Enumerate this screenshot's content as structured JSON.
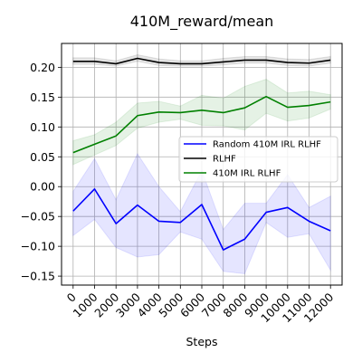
{
  "chart_data": {
    "type": "line",
    "title": "410M_reward/mean",
    "xlabel": "Steps",
    "ylabel": "",
    "x": [
      0,
      1000,
      2000,
      3000,
      4000,
      5000,
      6000,
      7000,
      8000,
      9000,
      10000,
      11000,
      12000
    ],
    "xticks": [
      "0",
      "1000",
      "2000",
      "3000",
      "4000",
      "5000",
      "6000",
      "7000",
      "8000",
      "9000",
      "10000",
      "11000",
      "12000"
    ],
    "yticks": [
      "0.20",
      "0.15",
      "0.10",
      "0.05",
      "0.00",
      "−0.05",
      "−0.10",
      "−0.15"
    ],
    "ytick_values": [
      0.2,
      0.15,
      0.1,
      0.05,
      0.0,
      -0.05,
      -0.1,
      -0.15
    ],
    "ylim": [
      -0.165,
      0.24
    ],
    "grid": true,
    "legend_position": "center-right",
    "series": [
      {
        "name": "Random 410M IRL RLHF",
        "color": "#0000ff",
        "values": [
          -0.041,
          -0.004,
          -0.062,
          -0.031,
          -0.058,
          -0.06,
          -0.03,
          -0.106,
          -0.088,
          -0.043,
          -0.035,
          -0.058,
          -0.074
        ],
        "lower": [
          -0.082,
          -0.055,
          -0.102,
          -0.118,
          -0.114,
          -0.076,
          -0.088,
          -0.142,
          -0.146,
          -0.06,
          -0.085,
          -0.079,
          -0.14
        ],
        "upper": [
          -0.008,
          0.047,
          -0.022,
          0.055,
          0.0,
          -0.042,
          0.027,
          -0.072,
          -0.028,
          -0.028,
          0.02,
          -0.035,
          -0.016
        ]
      },
      {
        "name": "RLHF",
        "color": "#000000",
        "values": [
          0.21,
          0.21,
          0.206,
          0.215,
          0.208,
          0.206,
          0.206,
          0.209,
          0.212,
          0.212,
          0.208,
          0.207,
          0.212
        ],
        "lower": [
          0.205,
          0.205,
          0.202,
          0.21,
          0.203,
          0.202,
          0.202,
          0.204,
          0.207,
          0.207,
          0.203,
          0.202,
          0.207
        ],
        "upper": [
          0.216,
          0.216,
          0.211,
          0.221,
          0.214,
          0.211,
          0.211,
          0.215,
          0.218,
          0.218,
          0.214,
          0.213,
          0.218
        ]
      },
      {
        "name": "410M IRL RLHF",
        "color": "#008000",
        "values": [
          0.057,
          0.071,
          0.085,
          0.119,
          0.125,
          0.124,
          0.128,
          0.124,
          0.132,
          0.151,
          0.133,
          0.136,
          0.142
        ],
        "lower": [
          0.037,
          0.053,
          0.069,
          0.098,
          0.108,
          0.113,
          0.103,
          0.102,
          0.095,
          0.123,
          0.11,
          0.115,
          0.13
        ],
        "upper": [
          0.077,
          0.087,
          0.108,
          0.14,
          0.143,
          0.135,
          0.153,
          0.148,
          0.168,
          0.18,
          0.157,
          0.16,
          0.154
        ]
      }
    ]
  }
}
